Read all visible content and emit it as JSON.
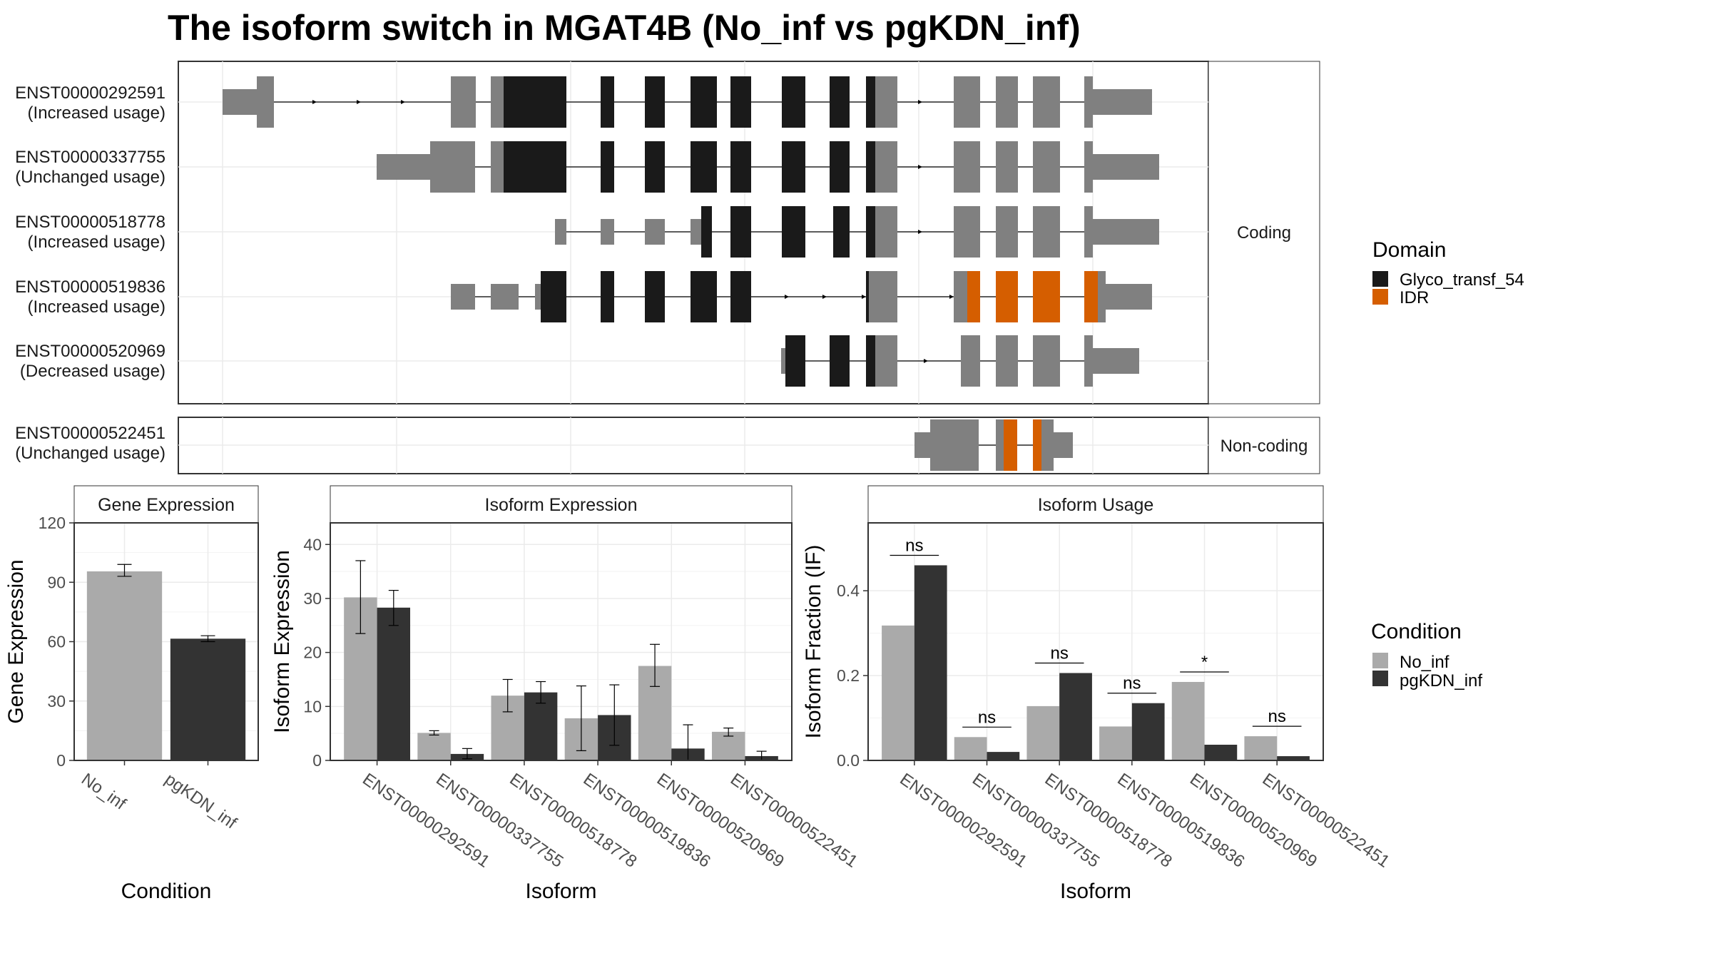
{
  "title": "The isoform switch in MGAT4B (No_inf vs pgKDN_inf)",
  "colors": {
    "utr": "#808080",
    "glyco": "#1a1a1a",
    "idr": "#d55e00",
    "no_inf": "#aaaaaa",
    "pgkdn_inf": "#333333",
    "grid": "#ebebeb",
    "strip_bg": "#ffffff",
    "panel_border": "#333333"
  },
  "structure": {
    "coding_strip": "Coding",
    "noncoding_strip": "Non-coding",
    "coding_isoforms": [
      {
        "id": "ENST00000292591",
        "usage": "(Increased usage)"
      },
      {
        "id": "ENST00000337755",
        "usage": "(Unchanged usage)"
      },
      {
        "id": "ENST00000518778",
        "usage": "(Increased usage)"
      },
      {
        "id": "ENST00000519836",
        "usage": "(Increased usage)"
      },
      {
        "id": "ENST00000520969",
        "usage": "(Decreased usage)"
      }
    ],
    "noncoding_isoforms": [
      {
        "id": "ENST00000522451",
        "usage": "(Unchanged usage)"
      }
    ]
  },
  "legend_domain": {
    "title": "Domain",
    "items": [
      {
        "label": "Glyco_transf_54",
        "color": "#1a1a1a"
      },
      {
        "label": "IDR",
        "color": "#d55e00"
      }
    ]
  },
  "legend_condition": {
    "title": "Condition",
    "items": [
      {
        "label": "No_inf",
        "color": "#aaaaaa"
      },
      {
        "label": "pgKDN_inf",
        "color": "#333333"
      }
    ]
  },
  "chart_data": [
    {
      "type": "bar",
      "title": "Gene Expression",
      "xlabel": "Condition",
      "ylabel": "Gene Expression",
      "categories": [
        "No_inf",
        "pgKDN_inf"
      ],
      "values": [
        95.5,
        61.5
      ],
      "error": [
        [
          93,
          99
        ],
        [
          60,
          63
        ]
      ],
      "ylim": [
        0,
        120
      ],
      "yticks": [
        0,
        30,
        60,
        90,
        120
      ]
    },
    {
      "type": "bar",
      "title": "Isoform Expression",
      "xlabel": "Isoform",
      "ylabel": "Isoform Expression",
      "categories": [
        "ENST00000292591",
        "ENST00000337755",
        "ENST00000518778",
        "ENST00000519836",
        "ENST00000520969",
        "ENST00000522451"
      ],
      "series": [
        {
          "name": "No_inf",
          "values": [
            30.2,
            5.1,
            12.0,
            7.8,
            17.5,
            5.3
          ],
          "error": [
            [
              23.5,
              37.0
            ],
            [
              4.7,
              5.5
            ],
            [
              9.0,
              15.0
            ],
            [
              1.8,
              13.8
            ],
            [
              13.7,
              21.5
            ],
            [
              4.5,
              6.0
            ]
          ]
        },
        {
          "name": "pgKDN_inf",
          "values": [
            28.3,
            1.2,
            12.6,
            8.4,
            2.2,
            0.8
          ],
          "error": [
            [
              25.0,
              31.5
            ],
            [
              0.3,
              2.2
            ],
            [
              10.6,
              14.6
            ],
            [
              2.8,
              14.0
            ],
            [
              0.0,
              6.6
            ],
            [
              0.0,
              1.7
            ]
          ]
        }
      ],
      "ylim": [
        0,
        44
      ],
      "yticks": [
        0,
        10,
        20,
        30,
        40
      ]
    },
    {
      "type": "bar",
      "title": "Isoform Usage",
      "xlabel": "Isoform",
      "ylabel": "Isoform Fraction (IF)",
      "categories": [
        "ENST00000292591",
        "ENST00000337755",
        "ENST00000518778",
        "ENST00000519836",
        "ENST00000520969",
        "ENST00000522451"
      ],
      "series": [
        {
          "name": "No_inf",
          "values": [
            0.318,
            0.055,
            0.128,
            0.08,
            0.185,
            0.057
          ]
        },
        {
          "name": "pgKDN_inf",
          "values": [
            0.46,
            0.02,
            0.206,
            0.135,
            0.037,
            0.01
          ]
        }
      ],
      "significance": [
        "ns",
        "ns",
        "ns",
        "ns",
        "*",
        "ns"
      ],
      "ylim": [
        0,
        0.56
      ],
      "yticks": [
        0.0,
        0.2,
        0.4
      ]
    }
  ]
}
